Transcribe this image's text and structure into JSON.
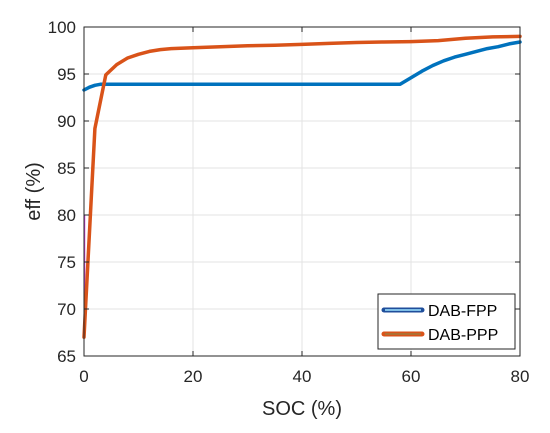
{
  "chart_data": {
    "type": "line",
    "xlabel": "SOC (%)",
    "ylabel": "eff (%)",
    "xlim": [
      0,
      80
    ],
    "ylim": [
      65,
      100
    ],
    "xticks": [
      0,
      20,
      40,
      60,
      80
    ],
    "yticks": [
      65,
      70,
      75,
      80,
      85,
      90,
      95,
      100
    ],
    "grid": true,
    "legend_position": "bottom-right",
    "series": [
      {
        "name": "DAB-FPP",
        "color": "#0072BD",
        "x": [
          0,
          1,
          2,
          3,
          4,
          6,
          8,
          10,
          15,
          20,
          30,
          40,
          50,
          58,
          60,
          62,
          64,
          66,
          68,
          70,
          72,
          74,
          76,
          78,
          80
        ],
        "y": [
          93.3,
          93.6,
          93.8,
          93.9,
          93.9,
          93.9,
          93.9,
          93.9,
          93.9,
          93.9,
          93.9,
          93.9,
          93.9,
          93.9,
          94.6,
          95.3,
          95.9,
          96.4,
          96.8,
          97.1,
          97.4,
          97.7,
          97.9,
          98.2,
          98.4
        ]
      },
      {
        "name": "DAB-PPP",
        "color": "#D95319",
        "x": [
          0,
          2,
          4,
          6,
          8,
          10,
          12,
          14,
          16,
          20,
          25,
          30,
          35,
          40,
          45,
          50,
          55,
          60,
          65,
          70,
          75,
          80
        ],
        "y": [
          67,
          89.2,
          94.9,
          96.0,
          96.7,
          97.1,
          97.4,
          97.6,
          97.7,
          97.8,
          97.9,
          98.0,
          98.05,
          98.15,
          98.25,
          98.35,
          98.4,
          98.45,
          98.55,
          98.8,
          98.95,
          99.0
        ]
      }
    ],
    "stem_color": "#D040D8",
    "stem_segment": {
      "x": 0,
      "y_from": 67,
      "y_to": 80
    }
  }
}
